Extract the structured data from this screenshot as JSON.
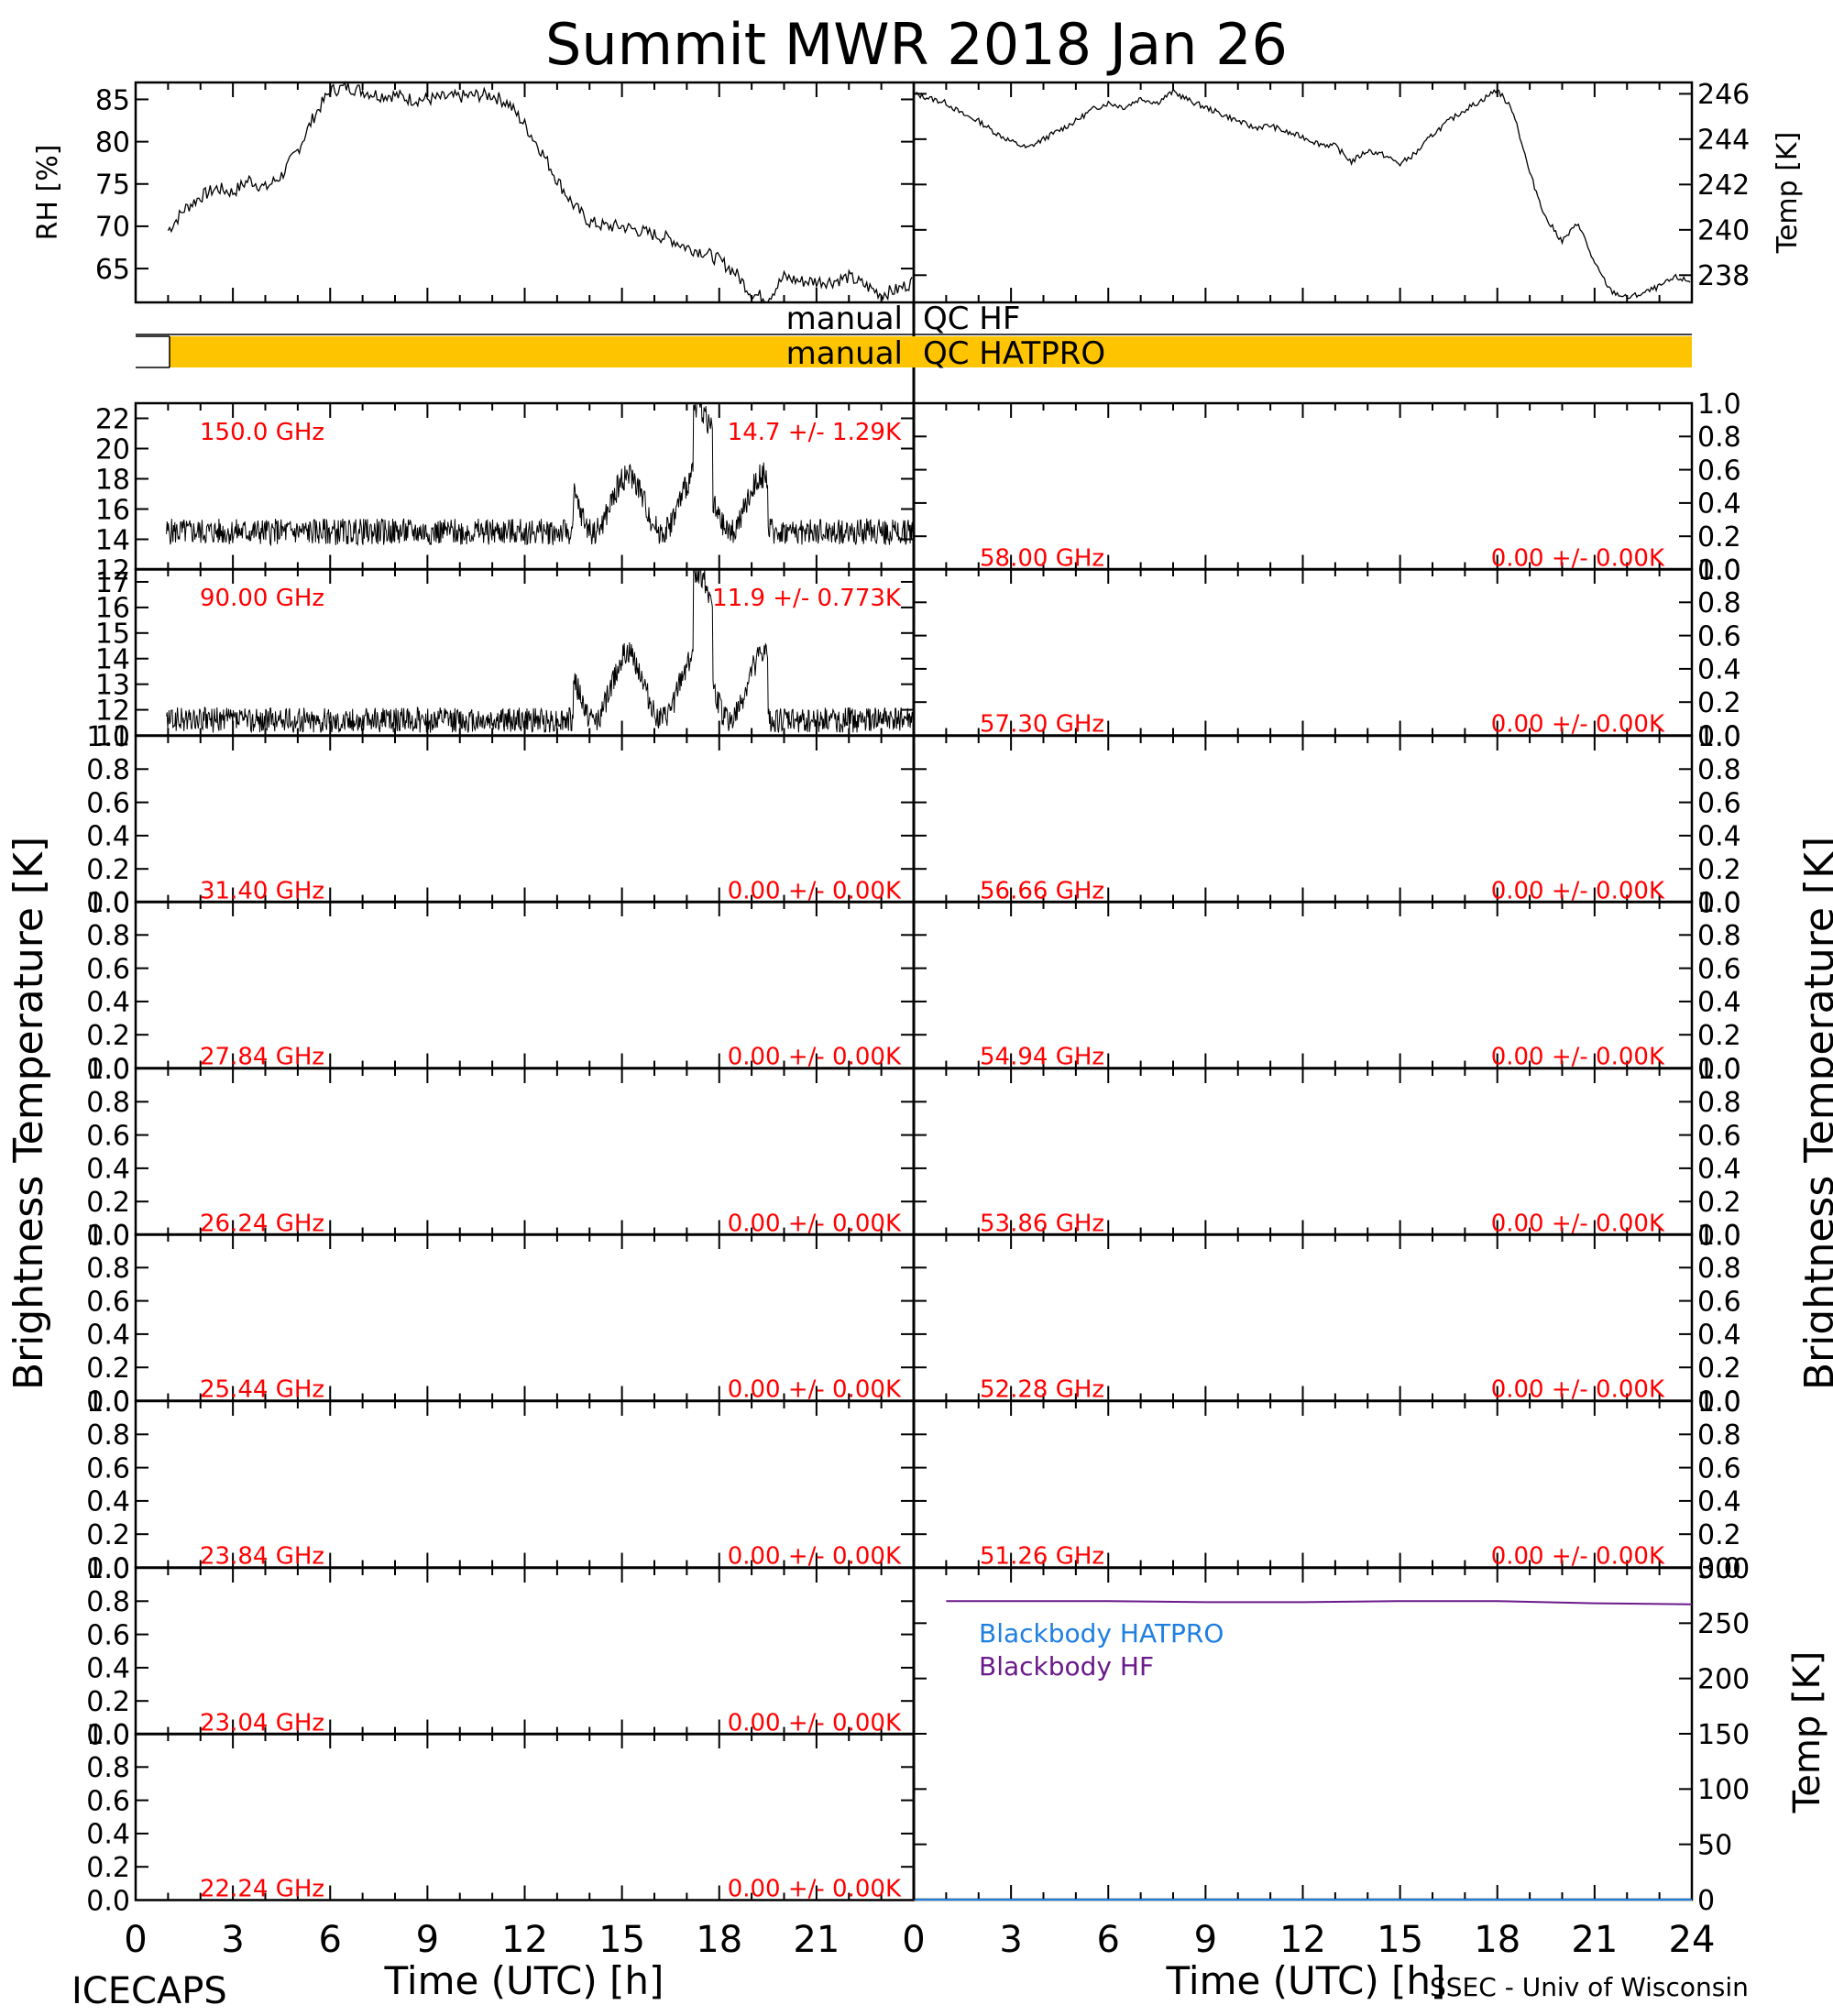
{
  "title": "Summit MWR 2018 Jan 26",
  "footer": {
    "left": "ICECAPS",
    "right": "SSEC - Univ of Wisconsin"
  },
  "colors": {
    "trace": "#000000",
    "label": "#ff0000",
    "qc_bar": "#ffc400",
    "bb_hatpro": "#1e7fe0",
    "bb_hf": "#6a1a8a"
  },
  "chart_data": [
    {
      "id": "rh",
      "type": "line",
      "ylabel": "RH [%]",
      "xlim": [
        0,
        24
      ],
      "ylim": [
        61,
        87
      ],
      "yticks": [
        65,
        70,
        75,
        80,
        85
      ],
      "x": [
        1.0,
        1.5,
        2.0,
        2.5,
        3.0,
        3.5,
        4.0,
        4.5,
        5.0,
        5.5,
        6.0,
        6.5,
        7.0,
        7.5,
        8.0,
        8.5,
        9.0,
        9.5,
        10.0,
        10.5,
        11.0,
        11.5,
        12.0,
        12.5,
        13.0,
        13.5,
        14.0,
        14.5,
        15.0,
        15.5,
        16.0,
        16.5,
        17.0,
        17.5,
        18.0,
        18.5,
        19.0,
        19.5,
        20.0,
        20.5,
        21.0,
        21.5,
        22.0,
        22.5,
        23.0,
        23.5,
        24.0
      ],
      "y": [
        69.5,
        72,
        73.5,
        74.5,
        74,
        75.5,
        74.5,
        76,
        79,
        83,
        86,
        86.5,
        86,
        85.5,
        85.5,
        85,
        85,
        85.2,
        85.3,
        85.5,
        85.5,
        84.5,
        82,
        79,
        75.5,
        72.5,
        70.5,
        70,
        70,
        69.5,
        69,
        68.5,
        67.5,
        67,
        66,
        64.5,
        62,
        61.5,
        64,
        63.5,
        63.5,
        63.5,
        64,
        63,
        62,
        62.5,
        63.5
      ]
    },
    {
      "id": "temp",
      "type": "line",
      "ylabel": "Temp [K]",
      "xlim": [
        0,
        24
      ],
      "ylim": [
        236.8,
        246.5
      ],
      "yticks": [
        238,
        240,
        242,
        244,
        246
      ],
      "x": [
        0,
        0.5,
        1.0,
        1.5,
        2.0,
        2.5,
        3.0,
        3.5,
        4.0,
        4.5,
        5.0,
        5.5,
        6.0,
        6.5,
        7.0,
        7.5,
        8.0,
        8.5,
        9.0,
        9.5,
        10.0,
        10.5,
        11.0,
        11.5,
        12.0,
        12.5,
        13.0,
        13.5,
        14.0,
        14.5,
        15.0,
        15.5,
        16.0,
        16.5,
        17.0,
        17.5,
        18.0,
        18.5,
        19.0,
        19.5,
        20.0,
        20.5,
        21.0,
        21.5,
        22.0,
        22.5,
        23.0,
        23.5,
        24.0
      ],
      "y": [
        246,
        245.8,
        245.6,
        245.1,
        244.8,
        244.3,
        243.9,
        243.6,
        244,
        244.4,
        244.8,
        245.3,
        245.6,
        245.4,
        245.8,
        245.6,
        246.1,
        245.7,
        245.4,
        245.1,
        244.8,
        244.5,
        244.6,
        244.3,
        244.1,
        243.8,
        243.7,
        243,
        243.5,
        243.3,
        242.9,
        243.4,
        244.2,
        244.8,
        245.3,
        245.7,
        246.2,
        245.2,
        242.5,
        240.5,
        239.5,
        240.3,
        238.5,
        237.3,
        237,
        237.2,
        237.5,
        237.9,
        237.7
      ]
    },
    {
      "id": "qc",
      "type": "timeline",
      "xlim": [
        0,
        24
      ],
      "rows": [
        {
          "label": "manual",
          "name": "QC HF",
          "segments": []
        },
        {
          "label": "manual",
          "name": "QC HATPRO",
          "segments": [
            [
              0.3,
              24
            ]
          ]
        }
      ]
    },
    {
      "id": "blackbody",
      "type": "line",
      "ylabel": "Temp [K]",
      "xlim": [
        0,
        24
      ],
      "ylim": [
        0,
        300
      ],
      "yticks": [
        0,
        50,
        100,
        150,
        200,
        250,
        300
      ],
      "series": [
        {
          "name": "Blackbody HATPRO",
          "x": [
            0,
            24
          ],
          "y": [
            0,
            0
          ]
        },
        {
          "name": "Blackbody HF",
          "x": [
            1,
            3,
            6,
            9,
            12,
            15,
            18,
            21,
            24
          ],
          "y": [
            270,
            270,
            270,
            269,
            269,
            270,
            270,
            268,
            267
          ]
        }
      ]
    }
  ],
  "tb_panels": {
    "ylabel": "Brightness Temperature [K]",
    "xlabel": "Time (UTC) [h]",
    "xlim": [
      0,
      24
    ],
    "xticks": [
      0,
      3,
      6,
      9,
      12,
      15,
      18,
      21
    ],
    "xticks_right": [
      0,
      3,
      6,
      9,
      12,
      15,
      18,
      21,
      24
    ],
    "left": [
      {
        "freq": "150.0 GHz",
        "stat": "14.7 +/-  1.29K",
        "ylim": [
          12,
          23
        ],
        "yticks": [
          12,
          14,
          16,
          18,
          20,
          22
        ],
        "base": 14.5,
        "noise": 0.8
      },
      {
        "freq": "90.00 GHz",
        "stat": "11.9 +/- 0.773K",
        "ylim": [
          11,
          17.5
        ],
        "yticks": [
          11,
          12,
          13,
          14,
          15,
          16,
          17
        ],
        "base": 11.6,
        "noise": 0.45
      },
      {
        "freq": "31.40 GHz",
        "stat": "0.00 +/-  0.00K",
        "ylim": [
          0,
          1
        ],
        "yticks": [
          0.0,
          0.2,
          0.4,
          0.6,
          0.8,
          1.0
        ]
      },
      {
        "freq": "27.84 GHz",
        "stat": "0.00 +/-  0.00K",
        "ylim": [
          0,
          1
        ],
        "yticks": [
          0.0,
          0.2,
          0.4,
          0.6,
          0.8,
          1.0
        ]
      },
      {
        "freq": "26.24 GHz",
        "stat": "0.00 +/-  0.00K",
        "ylim": [
          0,
          1
        ],
        "yticks": [
          0.0,
          0.2,
          0.4,
          0.6,
          0.8,
          1.0
        ]
      },
      {
        "freq": "25.44 GHz",
        "stat": "0.00 +/-  0.00K",
        "ylim": [
          0,
          1
        ],
        "yticks": [
          0.0,
          0.2,
          0.4,
          0.6,
          0.8,
          1.0
        ]
      },
      {
        "freq": "23.84 GHz",
        "stat": "0.00 +/-  0.00K",
        "ylim": [
          0,
          1
        ],
        "yticks": [
          0.0,
          0.2,
          0.4,
          0.6,
          0.8,
          1.0
        ]
      },
      {
        "freq": "23.04 GHz",
        "stat": "0.00 +/-  0.00K",
        "ylim": [
          0,
          1
        ],
        "yticks": [
          0.0,
          0.2,
          0.4,
          0.6,
          0.8,
          1.0
        ]
      },
      {
        "freq": "22.24 GHz",
        "stat": "0.00 +/-  0.00K",
        "ylim": [
          0,
          1
        ],
        "yticks": [
          0.0,
          0.2,
          0.4,
          0.6,
          0.8,
          1.0
        ]
      }
    ],
    "right": [
      {
        "freq": "58.00 GHz",
        "stat": "0.00 +/-  0.00K",
        "ylim": [
          0,
          1
        ],
        "yticks": [
          0.0,
          0.2,
          0.4,
          0.6,
          0.8,
          1.0
        ]
      },
      {
        "freq": "57.30 GHz",
        "stat": "0.00 +/-  0.00K",
        "ylim": [
          0,
          1
        ],
        "yticks": [
          0.0,
          0.2,
          0.4,
          0.6,
          0.8,
          1.0
        ]
      },
      {
        "freq": "56.66 GHz",
        "stat": "0.00 +/-  0.00K",
        "ylim": [
          0,
          1
        ],
        "yticks": [
          0.0,
          0.2,
          0.4,
          0.6,
          0.8,
          1.0
        ]
      },
      {
        "freq": "54.94 GHz",
        "stat": "0.00 +/-  0.00K",
        "ylim": [
          0,
          1
        ],
        "yticks": [
          0.0,
          0.2,
          0.4,
          0.6,
          0.8,
          1.0
        ]
      },
      {
        "freq": "53.86 GHz",
        "stat": "0.00 +/-  0.00K",
        "ylim": [
          0,
          1
        ],
        "yticks": [
          0.0,
          0.2,
          0.4,
          0.6,
          0.8,
          1.0
        ]
      },
      {
        "freq": "52.28 GHz",
        "stat": "0.00 +/-  0.00K",
        "ylim": [
          0,
          1
        ],
        "yticks": [
          0.0,
          0.2,
          0.4,
          0.6,
          0.8,
          1.0
        ]
      },
      {
        "freq": "51.26 GHz",
        "stat": "0.00 +/-  0.00K",
        "ylim": [
          0,
          1
        ],
        "yticks": [
          0.0,
          0.2,
          0.4,
          0.6,
          0.8,
          1.0
        ]
      }
    ]
  }
}
